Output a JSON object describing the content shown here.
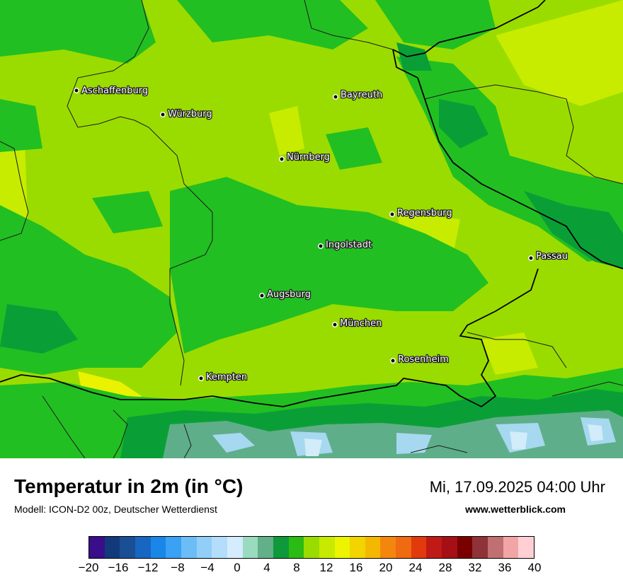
{
  "map": {
    "cities": [
      {
        "name": "Aschaffenburg"
      },
      {
        "name": "Bayreuth"
      },
      {
        "name": "Würzburg"
      },
      {
        "name": "Nürnberg"
      },
      {
        "name": "Regensburg"
      },
      {
        "name": "Ingolstadt"
      },
      {
        "name": "Passau"
      },
      {
        "name": "Augsburg"
      },
      {
        "name": "München"
      },
      {
        "name": "Rosenheim"
      },
      {
        "name": "Kempten"
      }
    ],
    "colors": {
      "base": "#9bdc00",
      "light": "#c7ec00",
      "dark": "#22bf22",
      "darker": "#0a9f36",
      "yellow": "#eaf200",
      "alpine_cool": "#5fae8a",
      "alpine_cold": "#a6d8f0",
      "alpine_snow": "#d2ecfa"
    }
  },
  "footer": {
    "title": "Temperatur in 2m (in °C)",
    "model": "Modell: ICON-D2 00z, Deutscher Wetterdienst",
    "datetime": "Mi, 17.09.2025 04:00 Uhr",
    "website": "www.wetterblick.com"
  },
  "legend": {
    "colors": [
      "#3a0e8a",
      "#123a7a",
      "#1a4f96",
      "#1766c1",
      "#1a86e8",
      "#3aa1f4",
      "#6cbdf7",
      "#91cff9",
      "#b3ddfb",
      "#d4ecfd",
      "#9adbc0",
      "#61b089",
      "#0e9a3a",
      "#2abb14",
      "#9bdc00",
      "#c8ea00",
      "#ecf400",
      "#f2d400",
      "#f4b800",
      "#f3870e",
      "#ef6a10",
      "#e23a0d",
      "#bf1a16",
      "#a50f15",
      "#7a0000",
      "#8f3338",
      "#c06f72",
      "#f2a5a5",
      "#ffd0d3"
    ],
    "ticks": [
      "−20",
      "−16",
      "−12",
      "−8",
      "−4",
      "0",
      "4",
      "8",
      "12",
      "16",
      "20",
      "24",
      "28",
      "32",
      "36",
      "40"
    ]
  }
}
